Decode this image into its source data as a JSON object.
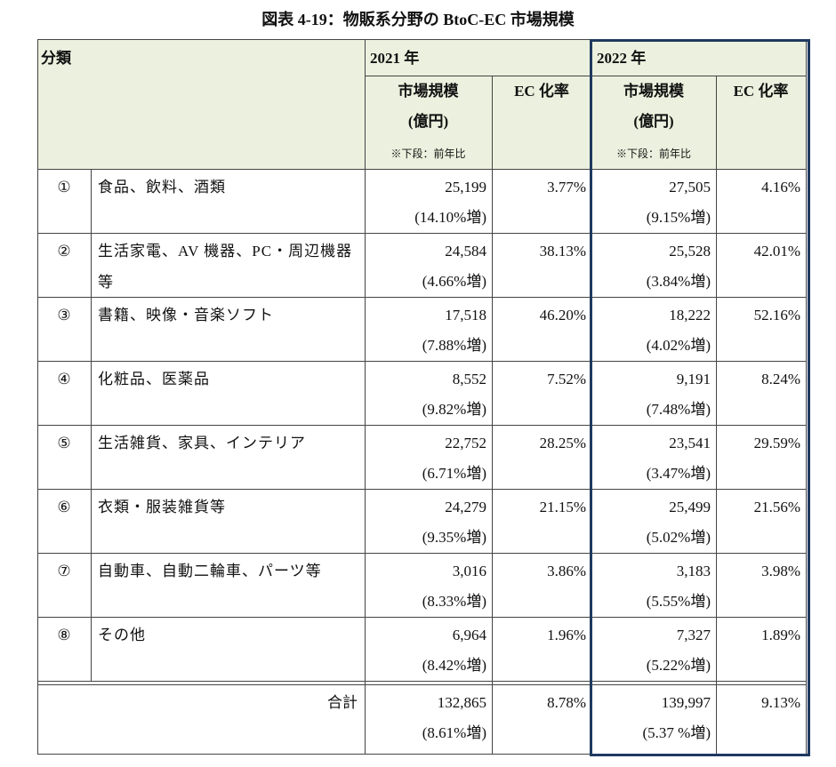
{
  "title": "図表 4-19：物販系分野の BtoC-EC 市場規模",
  "header": {
    "category": "分類",
    "columns": [
      {
        "year": "2021 年",
        "market_size": "市場規模",
        "unit": "(億円)",
        "note": "※下段：前年比",
        "ec_rate": "EC 化率"
      },
      {
        "year": "2022 年",
        "market_size": "市場規模",
        "unit": "(億円)",
        "note": "※下段：前年比",
        "ec_rate": "EC 化率"
      }
    ]
  },
  "rows": [
    {
      "no": "①",
      "name": "食品、飲料、酒類",
      "years": [
        {
          "market": "25,199",
          "growth": "(14.10%増)",
          "ec": "3.77%"
        },
        {
          "market": "27,505",
          "growth": "(9.15%増)",
          "ec": "4.16%"
        }
      ]
    },
    {
      "no": "②",
      "name": "生活家電、AV 機器、PC・周辺機器等",
      "years": [
        {
          "market": "24,584",
          "growth": "(4.66%増)",
          "ec": "38.13%"
        },
        {
          "market": "25,528",
          "growth": "(3.84%増)",
          "ec": "42.01%"
        }
      ]
    },
    {
      "no": "③",
      "name": "書籍、映像・音楽ソフト",
      "years": [
        {
          "market": "17,518",
          "growth": "(7.88%増)",
          "ec": "46.20%"
        },
        {
          "market": "18,222",
          "growth": "(4.02%増)",
          "ec": "52.16%"
        }
      ]
    },
    {
      "no": "④",
      "name": "化粧品、医薬品",
      "years": [
        {
          "market": "8,552",
          "growth": "(9.82%増)",
          "ec": "7.52%"
        },
        {
          "market": "9,191",
          "growth": "(7.48%増)",
          "ec": "8.24%"
        }
      ]
    },
    {
      "no": "⑤",
      "name": "生活雑貨、家具、インテリア",
      "years": [
        {
          "market": "22,752",
          "growth": "(6.71%増)",
          "ec": "28.25%"
        },
        {
          "market": "23,541",
          "growth": "(3.47%増)",
          "ec": "29.59%"
        }
      ]
    },
    {
      "no": "⑥",
      "name": "衣類・服装雑貨等",
      "years": [
        {
          "market": "24,279",
          "growth": "(9.35%増)",
          "ec": "21.15%"
        },
        {
          "market": "25,499",
          "growth": "(5.02%増)",
          "ec": "21.56%"
        }
      ]
    },
    {
      "no": "⑦",
      "name": "自動車、自動二輪車、パーツ等",
      "years": [
        {
          "market": "3,016",
          "growth": "(8.33%増)",
          "ec": "3.86%"
        },
        {
          "market": "3,183",
          "growth": "(5.55%増)",
          "ec": "3.98%"
        }
      ]
    },
    {
      "no": "⑧",
      "name": "その他",
      "years": [
        {
          "market": "6,964",
          "growth": "(8.42%増)",
          "ec": "1.96%"
        },
        {
          "market": "7,327",
          "growth": "(5.22%増)",
          "ec": "1.89%"
        }
      ]
    }
  ],
  "total": {
    "label": "合計",
    "years": [
      {
        "market": "132,865",
        "growth": "(8.61%増)",
        "ec": "8.78%"
      },
      {
        "market": "139,997",
        "growth": "(5.37 %増)",
        "ec": "9.13%"
      }
    ]
  }
}
